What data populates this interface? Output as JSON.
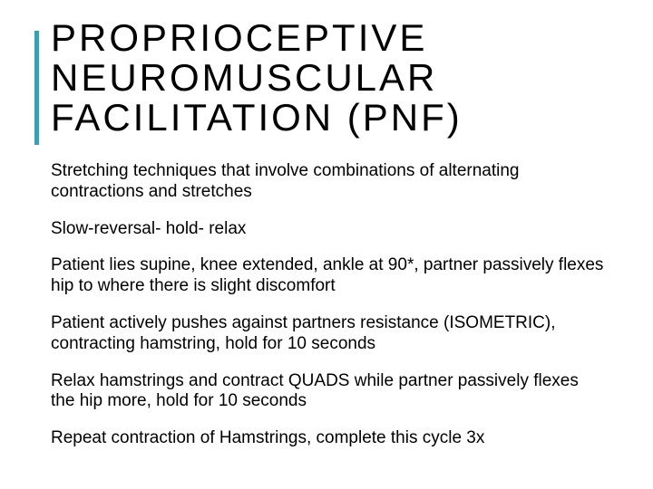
{
  "slide": {
    "accent_color": "#3d9eb0",
    "background_color": "#ffffff",
    "text_color": "#000000",
    "title_fontsize": 42,
    "title_letter_spacing": 3,
    "body_fontsize": 19,
    "title": "PROPRIOCEPTIVE NEUROMUSCULAR FACILITATION (PNF)",
    "paragraphs": [
      "Stretching techniques that involve combinations of alternating contractions and stretches",
      "Slow-reversal- hold- relax",
      "Patient lies supine, knee extended, ankle at 90*, partner passively flexes hip to where there is slight discomfort",
      "Patient actively pushes against partners resistance (ISOMETRIC), contracting hamstring, hold for 10 seconds",
      "Relax hamstrings and contract QUADS while partner passively flexes the hip more, hold for 10 seconds",
      "Repeat contraction of Hamstrings, complete this cycle 3x"
    ]
  }
}
